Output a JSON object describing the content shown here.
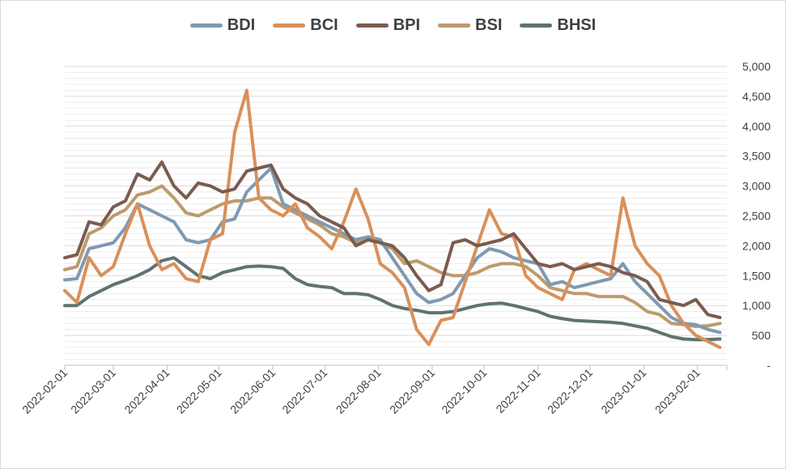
{
  "chart_data": {
    "type": "line",
    "title": "",
    "xlabel": "",
    "ylabel": "",
    "ylim": [
      0,
      5000
    ],
    "y_ticks": [
      "-",
      "500",
      "1,000",
      "1,500",
      "2,000",
      "2,500",
      "3,000",
      "3,500",
      "4,000",
      "4,500",
      "5,000"
    ],
    "x_tick_labels": [
      "2022-02-01",
      "2022-03-01",
      "2022-04-01",
      "2022-05-01",
      "2022-06-01",
      "2022-07-01",
      "2022-08-01",
      "2022-09-01",
      "2022-10-01",
      "2022-11-01",
      "2022-12-01",
      "2023-01-01",
      "2023-02-01"
    ],
    "x_days": [
      0,
      28,
      59,
      89,
      120,
      150,
      181,
      212,
      242,
      273,
      303,
      334,
      365
    ],
    "x_max_days": 382,
    "legend_position": "top",
    "grid": true,
    "series": [
      {
        "name": "BDI",
        "color": "#7f99b2",
        "x": [
          0,
          7,
          14,
          21,
          28,
          35,
          42,
          49,
          56,
          63,
          70,
          77,
          84,
          91,
          98,
          105,
          112,
          119,
          126,
          133,
          140,
          147,
          154,
          161,
          168,
          175,
          182,
          189,
          196,
          203,
          210,
          217,
          224,
          231,
          238,
          245,
          252,
          259,
          266,
          273,
          280,
          287,
          294,
          301,
          308,
          315,
          322,
          329,
          336,
          343,
          350,
          357,
          364,
          371,
          378
        ],
        "values": [
          1430,
          1450,
          1950,
          2000,
          2050,
          2300,
          2700,
          2600,
          2500,
          2400,
          2100,
          2050,
          2100,
          2400,
          2450,
          2900,
          3100,
          3300,
          2700,
          2600,
          2500,
          2400,
          2300,
          2200,
          2100,
          2150,
          2100,
          1800,
          1500,
          1200,
          1050,
          1100,
          1200,
          1500,
          1800,
          1950,
          1900,
          1800,
          1750,
          1700,
          1350,
          1400,
          1300,
          1350,
          1400,
          1450,
          1700,
          1400,
          1200,
          1000,
          800,
          700,
          680,
          600,
          550
        ]
      },
      {
        "name": "BCI",
        "color": "#d9905a",
        "x": [
          0,
          7,
          14,
          21,
          28,
          35,
          42,
          49,
          56,
          63,
          70,
          77,
          84,
          91,
          98,
          105,
          112,
          119,
          126,
          133,
          140,
          147,
          154,
          161,
          168,
          175,
          182,
          189,
          196,
          203,
          210,
          217,
          224,
          231,
          238,
          245,
          252,
          259,
          266,
          273,
          280,
          287,
          294,
          301,
          308,
          315,
          322,
          329,
          336,
          343,
          350,
          357,
          364,
          371,
          378
        ],
        "values": [
          1250,
          1050,
          1800,
          1500,
          1650,
          2200,
          2700,
          2000,
          1600,
          1700,
          1450,
          1400,
          2100,
          2200,
          3900,
          4600,
          2800,
          2600,
          2500,
          2700,
          2300,
          2150,
          1950,
          2400,
          2950,
          2450,
          1700,
          1550,
          1300,
          600,
          350,
          750,
          800,
          1400,
          2000,
          2600,
          2200,
          2150,
          1500,
          1300,
          1200,
          1100,
          1600,
          1700,
          1600,
          1500,
          2800,
          2000,
          1700,
          1500,
          1000,
          700,
          500,
          400,
          300
        ]
      },
      {
        "name": "BPI",
        "color": "#7a5c4f",
        "x": [
          0,
          7,
          14,
          21,
          28,
          35,
          42,
          49,
          56,
          63,
          70,
          77,
          84,
          91,
          98,
          105,
          112,
          119,
          126,
          133,
          140,
          147,
          154,
          161,
          168,
          175,
          182,
          189,
          196,
          203,
          210,
          217,
          224,
          231,
          238,
          245,
          252,
          259,
          266,
          273,
          280,
          287,
          294,
          301,
          308,
          315,
          322,
          329,
          336,
          343,
          350,
          357,
          364,
          371,
          378
        ],
        "values": [
          1800,
          1850,
          2400,
          2350,
          2650,
          2750,
          3200,
          3100,
          3400,
          3000,
          2800,
          3050,
          3000,
          2900,
          2950,
          3250,
          3300,
          3350,
          2950,
          2800,
          2700,
          2500,
          2400,
          2300,
          2000,
          2100,
          2050,
          2000,
          1800,
          1500,
          1250,
          1350,
          2050,
          2100,
          2000,
          2050,
          2100,
          2200,
          1950,
          1700,
          1650,
          1700,
          1600,
          1650,
          1700,
          1650,
          1550,
          1500,
          1400,
          1100,
          1050,
          1000,
          1100,
          850,
          800
        ]
      },
      {
        "name": "BSI",
        "color": "#bd9a6d",
        "x": [
          0,
          7,
          14,
          21,
          28,
          35,
          42,
          49,
          56,
          63,
          70,
          77,
          84,
          91,
          98,
          105,
          112,
          119,
          126,
          133,
          140,
          147,
          154,
          161,
          168,
          175,
          182,
          189,
          196,
          203,
          210,
          217,
          224,
          231,
          238,
          245,
          252,
          259,
          266,
          273,
          280,
          287,
          294,
          301,
          308,
          315,
          322,
          329,
          336,
          343,
          350,
          357,
          364,
          371,
          378
        ],
        "values": [
          1600,
          1650,
          2200,
          2300,
          2500,
          2600,
          2850,
          2900,
          3000,
          2800,
          2550,
          2500,
          2600,
          2700,
          2750,
          2750,
          2800,
          2800,
          2650,
          2550,
          2450,
          2350,
          2200,
          2150,
          2050,
          2100,
          2050,
          1950,
          1700,
          1750,
          1650,
          1550,
          1500,
          1500,
          1550,
          1650,
          1700,
          1700,
          1650,
          1500,
          1300,
          1250,
          1200,
          1200,
          1150,
          1150,
          1150,
          1050,
          900,
          850,
          700,
          680,
          650,
          660,
          700
        ]
      },
      {
        "name": "BHSI",
        "color": "#5f7370",
        "x": [
          0,
          7,
          14,
          21,
          28,
          35,
          42,
          49,
          56,
          63,
          70,
          77,
          84,
          91,
          98,
          105,
          112,
          119,
          126,
          133,
          140,
          147,
          154,
          161,
          168,
          175,
          182,
          189,
          196,
          203,
          210,
          217,
          224,
          231,
          238,
          245,
          252,
          259,
          266,
          273,
          280,
          287,
          294,
          301,
          308,
          315,
          322,
          329,
          336,
          343,
          350,
          357,
          364,
          371,
          378
        ],
        "values": [
          1000,
          1000,
          1150,
          1250,
          1350,
          1420,
          1500,
          1600,
          1750,
          1800,
          1650,
          1500,
          1450,
          1550,
          1600,
          1650,
          1660,
          1650,
          1620,
          1450,
          1350,
          1320,
          1300,
          1200,
          1200,
          1180,
          1100,
          1000,
          950,
          920,
          880,
          880,
          900,
          950,
          1000,
          1030,
          1040,
          1000,
          950,
          900,
          820,
          780,
          750,
          740,
          730,
          720,
          700,
          660,
          620,
          550,
          480,
          440,
          430,
          430,
          440
        ]
      }
    ]
  }
}
